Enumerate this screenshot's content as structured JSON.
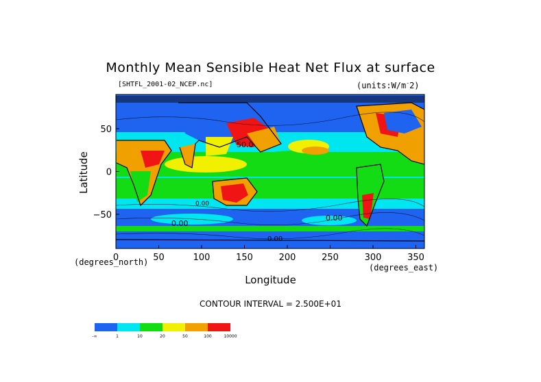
{
  "title": "Monthly Mean Sensible Heat Net Flux at surface",
  "file_label": "[SHTFL_2001-02_NCEP.nc]",
  "units_text": "(units:W/m",
  "units_sup": "-",
  "units_exp": "2)",
  "ylabel": "Latitude",
  "xlabel": "Longitude",
  "x_units": "(degrees_east)",
  "y_units": "(degrees_north)",
  "x_ticks": [
    "0",
    "50",
    "100",
    "150",
    "200",
    "250",
    "300",
    "350"
  ],
  "y_ticks": [
    "50",
    "0",
    "−50"
  ],
  "contour_labels": [
    "50.0",
    "0.00",
    "0.00",
    "0.00",
    "0.00"
  ],
  "contour_interval": "CONTOUR INTERVAL = 2.500E+01",
  "colorbar": {
    "labels": [
      "-∞",
      "1",
      "10",
      "20",
      "50",
      "100",
      "10000"
    ],
    "colors": [
      "#1e64f0",
      "#00e6f0",
      "#14dc14",
      "#f0f000",
      "#f0a000",
      "#f01414"
    ]
  },
  "chart_data": {
    "type": "heatmap",
    "title": "Monthly Mean Sensible Heat Net Flux at surface",
    "xlabel": "Longitude",
    "ylabel": "Latitude",
    "xlim": [
      0,
      360
    ],
    "ylim": [
      -90,
      90
    ],
    "x_ticks": [
      0,
      50,
      100,
      150,
      200,
      250,
      300,
      350
    ],
    "y_ticks": [
      50,
      0,
      -50
    ],
    "levels": [
      1,
      10,
      20,
      50,
      100
    ],
    "contour_interval": 25,
    "units": "W/m-2"
  }
}
